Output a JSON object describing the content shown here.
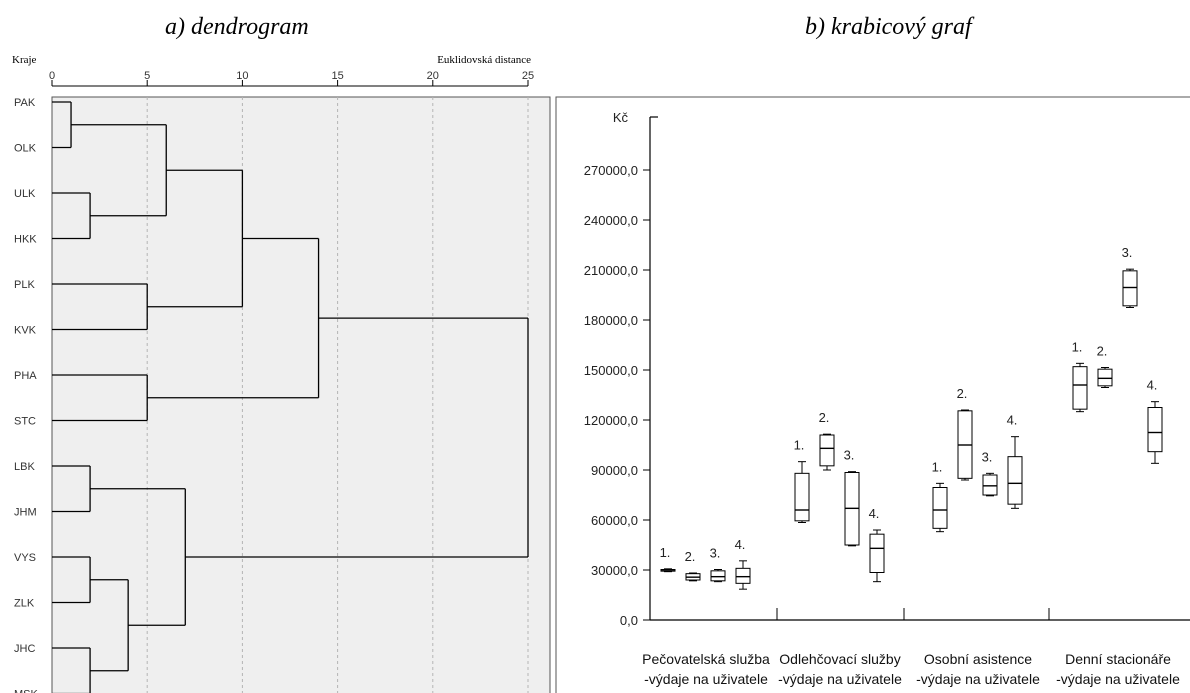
{
  "panel_titles": {
    "a": "a) dendrogram",
    "b": "b) krabicový graf"
  },
  "colors": {
    "panel_bg": "#efefef",
    "grid": "#b4b4b4",
    "line": "#000000"
  },
  "chart_data": [
    {
      "type": "dendrogram",
      "ylabel": "Kraje",
      "xlabel": "Euklidovská distance",
      "xlim": [
        0,
        25
      ],
      "xticks": [
        0,
        5,
        10,
        15,
        20,
        25
      ],
      "grid": true,
      "leaves": [
        "PAK",
        "OLK",
        "ULK",
        "HKK",
        "PLK",
        "KVK",
        "PHA",
        "STC",
        "LBK",
        "JHM",
        "VYS",
        "ZLK",
        "JHC",
        "MSK"
      ],
      "merges": [
        {
          "a": "PAK",
          "b": "OLK",
          "d": 1
        },
        {
          "a": "ULK",
          "b": "HKK",
          "d": 2
        },
        {
          "a": "LBK",
          "b": "JHM",
          "d": 2
        },
        {
          "a": "VYS",
          "b": "ZLK",
          "d": 2
        },
        {
          "a": "JHC",
          "b": "MSK",
          "d": 2
        },
        {
          "a": "VYS+ZLK",
          "b": "JHC+MSK",
          "d": 4
        },
        {
          "a": "PLK",
          "b": "KVK",
          "d": 5
        },
        {
          "a": "PHA",
          "b": "STC",
          "d": 5
        },
        {
          "a": "PAK+OLK",
          "b": "ULK+HKK",
          "d": 6
        },
        {
          "a": "LBK+JHM",
          "b": "VYS..MSK",
          "d": 7
        },
        {
          "a": "PAK..HKK",
          "b": "PLK+KVK",
          "d": 10
        },
        {
          "a": "PAK..KVK",
          "b": "PHA+STC",
          "d": 14
        },
        {
          "a": "PAK..STC",
          "b": "LBK..MSK",
          "d": 25
        }
      ]
    },
    {
      "type": "box",
      "ylabel": "Kč",
      "ylim": [
        0,
        290000
      ],
      "yticks": [
        0,
        30000,
        60000,
        90000,
        120000,
        150000,
        180000,
        210000,
        240000,
        270000
      ],
      "ytick_labels": [
        "0,0",
        "30000,0",
        "60000,0",
        "90000,0",
        "120000,0",
        "150000,0",
        "180000,0",
        "210000,0",
        "240000,0",
        "270000,0"
      ],
      "categories": [
        {
          "line1": "Pečovatelská služba",
          "line2": "-výdaje na uživatele"
        },
        {
          "line1": "Odlehčovací služby",
          "line2": "-výdaje na uživatele"
        },
        {
          "line1": "Osobní asistence",
          "line2": "-výdaje na uživatele"
        },
        {
          "line1": "Denní stacionáře",
          "line2": "-výdaje na uživatele"
        }
      ],
      "groups": [
        [
          {
            "label": "1.",
            "min": 29000,
            "q1": 29300,
            "median": 30000,
            "q3": 30300,
            "max": 30700
          },
          {
            "label": "2.",
            "min": 23500,
            "q1": 24000,
            "median": 25700,
            "q3": 27800,
            "max": 28200
          },
          {
            "label": "3.",
            "min": 23000,
            "q1": 23500,
            "median": 26000,
            "q3": 29500,
            "max": 30300
          },
          {
            "label": "4.",
            "min": 18500,
            "q1": 22000,
            "median": 26000,
            "q3": 31000,
            "max": 35500
          }
        ],
        [
          {
            "label": "1.",
            "min": 58500,
            "q1": 59500,
            "median": 66000,
            "q3": 88000,
            "max": 95000
          },
          {
            "label": "2.",
            "min": 90000,
            "q1": 92500,
            "median": 103000,
            "q3": 111000,
            "max": 111500
          },
          {
            "label": "3.",
            "min": 44500,
            "q1": 45000,
            "median": 67000,
            "q3": 88500,
            "max": 89000
          },
          {
            "label": "4.",
            "min": 23000,
            "q1": 28500,
            "median": 43000,
            "q3": 51500,
            "max": 54000
          }
        ],
        [
          {
            "label": "1.",
            "min": 53000,
            "q1": 55000,
            "median": 66000,
            "q3": 79500,
            "max": 82000
          },
          {
            "label": "2.",
            "min": 84000,
            "q1": 85000,
            "median": 105000,
            "q3": 125500,
            "max": 126000
          },
          {
            "label": "3.",
            "min": 74500,
            "q1": 75000,
            "median": 80500,
            "q3": 87000,
            "max": 88000
          },
          {
            "label": "4.",
            "min": 67000,
            "q1": 69500,
            "median": 82000,
            "q3": 98000,
            "max": 110000
          }
        ],
        [
          {
            "label": "1.",
            "min": 125000,
            "q1": 126500,
            "median": 141000,
            "q3": 152000,
            "max": 154000
          },
          {
            "label": "2.",
            "min": 139500,
            "q1": 140500,
            "median": 145000,
            "q3": 150500,
            "max": 151500
          },
          {
            "label": "3.",
            "min": 187500,
            "q1": 188500,
            "median": 199500,
            "q3": 209500,
            "max": 210500
          },
          {
            "label": "4.",
            "min": 94000,
            "q1": 101000,
            "median": 112500,
            "q3": 127500,
            "max": 131000
          }
        ]
      ]
    }
  ]
}
